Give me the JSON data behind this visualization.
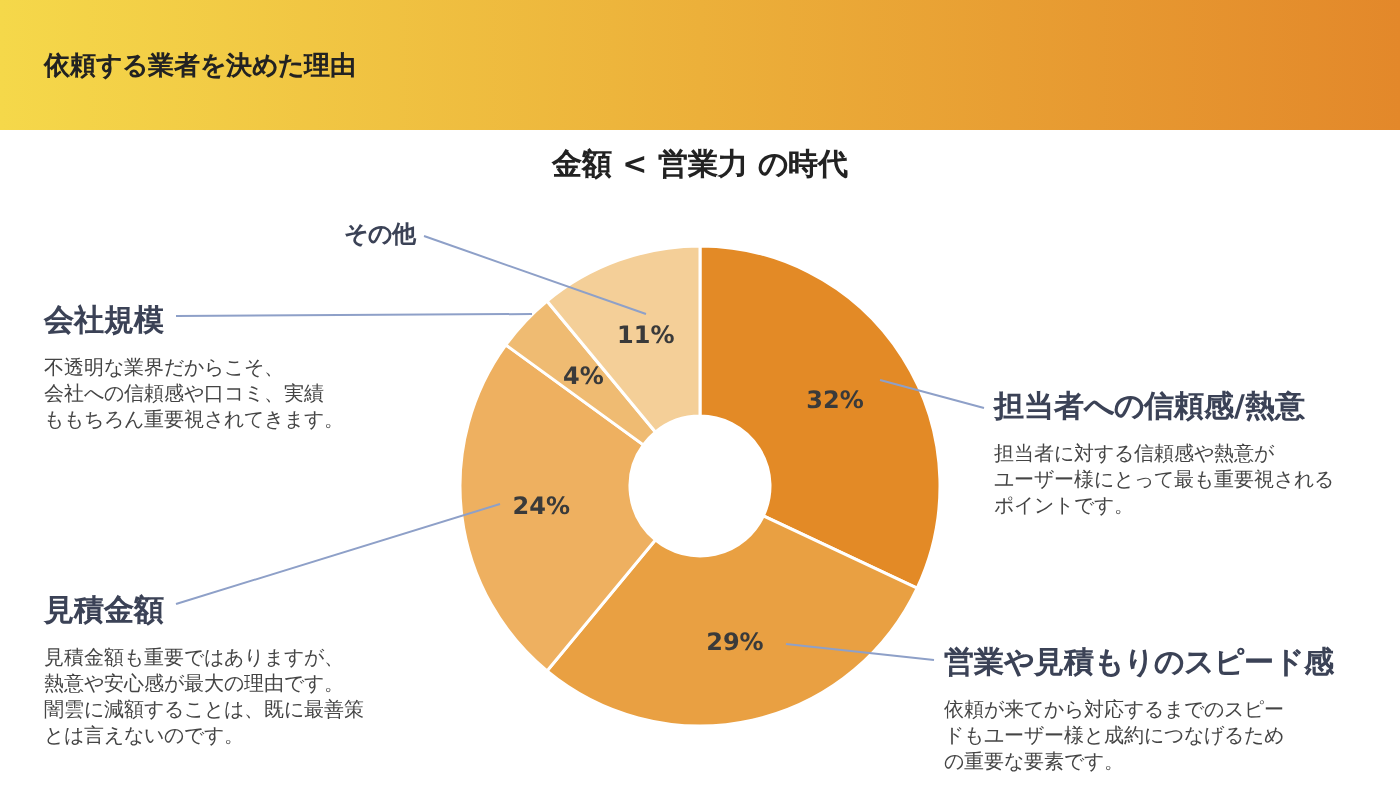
{
  "chart_data": {
    "type": "donut",
    "title": "依頼する業者を決めた理由",
    "subtitle": "金額 < 営業力 の時代",
    "categories": [
      "担当者への信頼感/熱意",
      "営業や見積もりのスピード感",
      "見積金額",
      "会社規模",
      "その他"
    ],
    "values": [
      32,
      29,
      24,
      4,
      11
    ],
    "colors": [
      "#e38a26",
      "#e9a042",
      "#eeb060",
      "#efbb72",
      "#f4cf98"
    ],
    "value_labels": [
      "32%",
      "29%",
      "24%",
      "4%",
      "11%"
    ],
    "annotations": [
      "担当者に対する信頼感や熱意がユーザー様にとって最も重要視されるポイントです。",
      "依頼が来てから対応するまでのスピードもユーザー様と成約につなげるための重要な要素です。",
      "見積金額も重要ではありますが、熱意や安心感が最大の理由です。闇雲に減額することは、既に最善策とは言えないのです。",
      "不透明な業界だからこそ、会社への信頼感や口コミ、実績ももちろん重要視されてきます。"
    ]
  }
}
